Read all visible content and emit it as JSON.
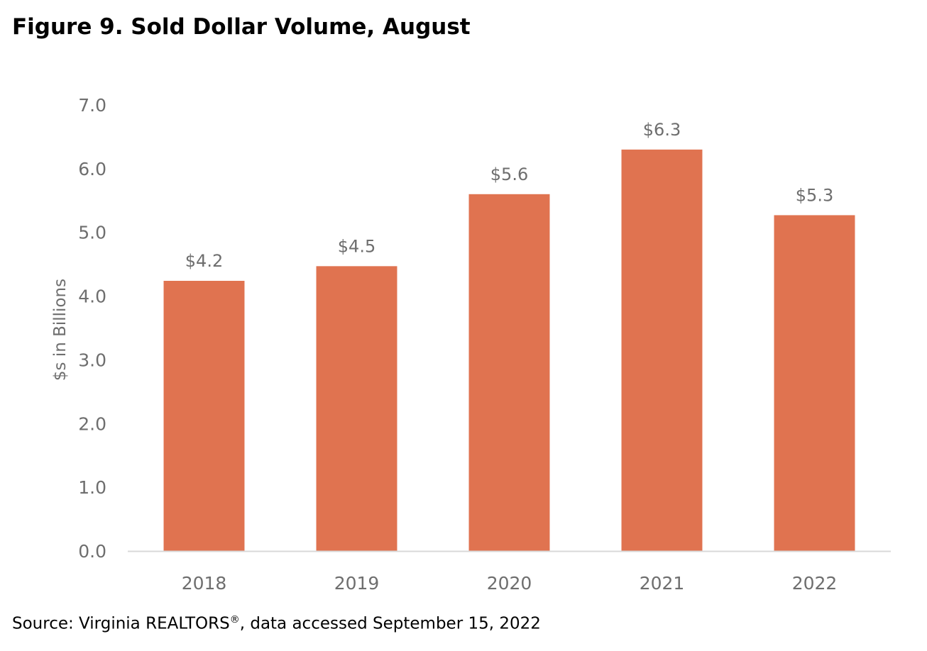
{
  "figure_title": "Figure 9. Sold Dollar Volume, August",
  "source_prefix": "Source: Virginia REALTORS",
  "source_mark": "®",
  "source_suffix": ", data accessed September 15, 2022",
  "chart_data": {
    "type": "bar",
    "title": "",
    "xlabel": "",
    "ylabel": "$s in Billions",
    "categories": [
      "2018",
      "2019",
      "2020",
      "2021",
      "2022"
    ],
    "values": [
      4.24,
      4.47,
      5.6,
      6.3,
      5.27
    ],
    "data_labels": [
      "$4.2",
      "$4.5",
      "$5.6",
      "$6.3",
      "$5.3"
    ],
    "ylim": [
      0,
      7
    ],
    "yticks": [
      "0.0",
      "1.0",
      "2.0",
      "3.0",
      "4.0",
      "5.0",
      "6.0",
      "7.0"
    ],
    "grid": false,
    "legend": "none",
    "bar_color": "#e07350",
    "axis_color": "#d9d9d9"
  }
}
